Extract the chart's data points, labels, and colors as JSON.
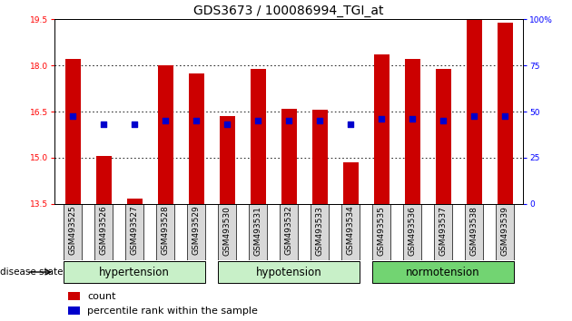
{
  "title": "GDS3673 / 100086994_TGI_at",
  "samples": [
    "GSM493525",
    "GSM493526",
    "GSM493527",
    "GSM493528",
    "GSM493529",
    "GSM493530",
    "GSM493531",
    "GSM493532",
    "GSM493533",
    "GSM493534",
    "GSM493535",
    "GSM493536",
    "GSM493537",
    "GSM493538",
    "GSM493539"
  ],
  "bar_values": [
    18.22,
    15.05,
    13.67,
    18.0,
    17.75,
    16.35,
    17.9,
    16.6,
    16.55,
    14.85,
    18.35,
    18.22,
    17.9,
    19.47,
    19.4
  ],
  "dot_values": [
    16.35,
    16.1,
    16.1,
    16.2,
    16.2,
    16.1,
    16.2,
    16.2,
    16.2,
    16.1,
    16.25,
    16.25,
    16.2,
    16.35,
    16.35
  ],
  "ylim_left": [
    13.5,
    19.5
  ],
  "ylim_right": [
    0,
    100
  ],
  "yticks_left": [
    13.5,
    15.0,
    16.5,
    18.0,
    19.5
  ],
  "yticks_right": [
    0,
    25,
    50,
    75,
    100
  ],
  "bar_color": "#cc0000",
  "dot_color": "#0000cc",
  "bar_width": 0.5,
  "bg_color": "#ffffff",
  "title_fontsize": 10,
  "tick_fontsize": 6.5,
  "group_fontsize": 8.5,
  "legend_fontsize": 8,
  "group_ranges": [
    {
      "label": "hypertension",
      "start": 0,
      "end": 4
    },
    {
      "label": "hypotension",
      "start": 5,
      "end": 9
    },
    {
      "label": "normotension",
      "start": 10,
      "end": 14
    }
  ],
  "group_colors": [
    "#c8f0c8",
    "#c8f0c8",
    "#72d472"
  ],
  "xtick_box_color": "#d8d8d8",
  "grid_dotted_at": [
    15.0,
    16.5,
    18.0
  ]
}
